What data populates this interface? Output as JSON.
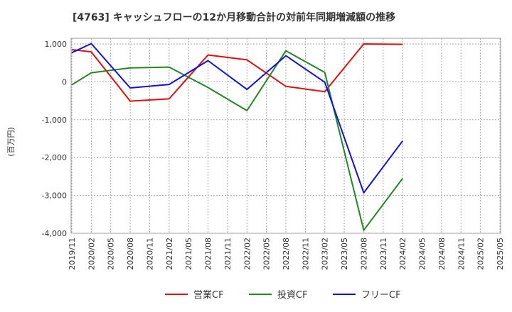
{
  "chart_data": {
    "type": "line",
    "title": "[4763]  キャッシュフローの12か月移動合計の対前年同期増減額の推移",
    "ylabel": "(百万円)",
    "xlabel": "",
    "ylim": [
      -4000,
      1150
    ],
    "grid": true,
    "yticks": [
      1000,
      0,
      -1000,
      -2000,
      -3000,
      -4000
    ],
    "ytick_labels": [
      "1,000",
      "0",
      "-1,000",
      "-2,000",
      "-3,000",
      "-4,000"
    ],
    "categories": [
      "2019/11",
      "2020/02",
      "2020/05",
      "2020/08",
      "2020/11",
      "2021/02",
      "2021/05",
      "2021/08",
      "2021/11",
      "2022/02",
      "2022/05",
      "2022/08",
      "2022/11",
      "2023/02",
      "2023/05",
      "2023/08",
      "2023/11",
      "2024/02",
      "2024/05",
      "2024/08",
      "2024/11",
      "2025/02",
      "2025/05"
    ],
    "series": [
      {
        "name": "営業CF",
        "color": "#dd1111",
        "values": [
          850,
          790,
          null,
          -510,
          null,
          -450,
          null,
          710,
          null,
          580,
          null,
          -120,
          null,
          -260,
          null,
          1000,
          null,
          990,
          null,
          null,
          null,
          null,
          null
        ]
      },
      {
        "name": "投資CF",
        "color": "#228822",
        "values": [
          -80,
          240,
          null,
          370,
          null,
          390,
          null,
          -150,
          null,
          -760,
          null,
          820,
          null,
          250,
          null,
          -3920,
          null,
          -2550,
          null,
          null,
          null,
          null,
          null
        ]
      },
      {
        "name": "フリーCF",
        "color": "#1111dd",
        "values": [
          770,
          1010,
          null,
          -160,
          null,
          -70,
          null,
          560,
          null,
          -200,
          null,
          690,
          null,
          -10,
          null,
          -2930,
          null,
          -1560,
          null,
          null,
          null,
          null,
          null
        ]
      }
    ],
    "legend_position": "bottom"
  }
}
